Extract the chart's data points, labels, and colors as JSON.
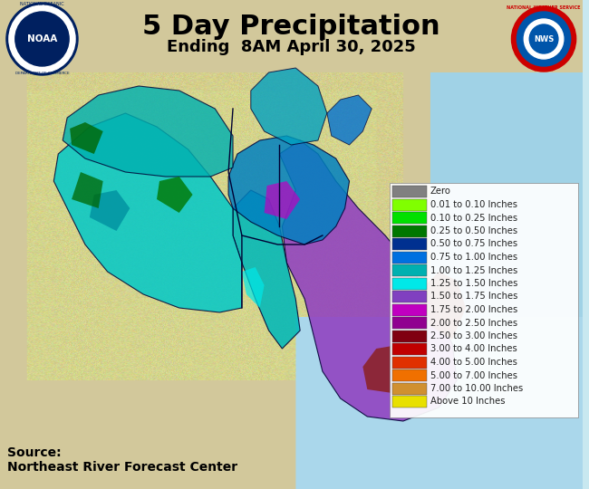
{
  "title": "5 Day Precipitation",
  "subtitle": "Ending  8AM April 30, 2025",
  "source_text": "Source:\nNortheast River Forecast Center",
  "bg_color": "#c8e8f0",
  "legend_entries": [
    {
      "label": "Zero",
      "color": "#808080"
    },
    {
      "label": "0.01 to 0.10 Inches",
      "color": "#80ff00"
    },
    {
      "label": "0.10 to 0.25 Inches",
      "color": "#00e000"
    },
    {
      "label": "0.25 to 0.50 Inches",
      "color": "#007700"
    },
    {
      "label": "0.50 to 0.75 Inches",
      "color": "#003090"
    },
    {
      "label": "0.75 to 1.00 Inches",
      "color": "#0070e0"
    },
    {
      "label": "1.00 to 1.25 Inches",
      "color": "#00b0b0"
    },
    {
      "label": "1.25 to 1.50 Inches",
      "color": "#00e8e8"
    },
    {
      "label": "1.50 to 1.75 Inches",
      "color": "#8040c0"
    },
    {
      "label": "1.75 to 2.00 Inches",
      "color": "#c000c0"
    },
    {
      "label": "2.00 to 2.50 Inches",
      "color": "#900090"
    },
    {
      "label": "2.50 to 3.00 Inches",
      "color": "#800010"
    },
    {
      "label": "3.00 to 4.00 Inches",
      "color": "#c00000"
    },
    {
      "label": "4.00 to 5.00 Inches",
      "color": "#e03000"
    },
    {
      "label": "5.00 to 7.00 Inches",
      "color": "#f07000"
    },
    {
      "label": "7.00 to 10.00 Inches",
      "color": "#d09030"
    },
    {
      "label": "Above 10 Inches",
      "color": "#e8e000"
    }
  ],
  "title_fontsize": 22,
  "subtitle_fontsize": 13,
  "source_fontsize": 10
}
